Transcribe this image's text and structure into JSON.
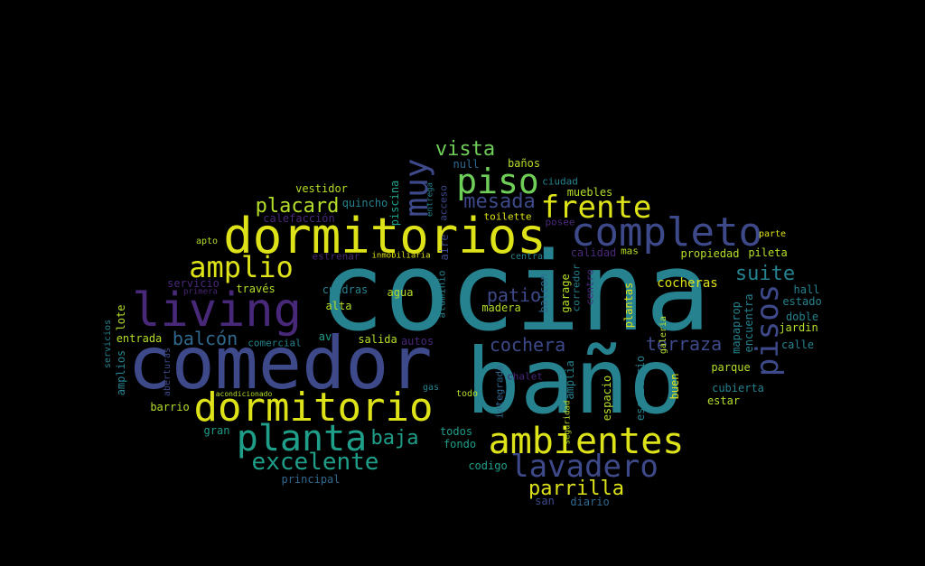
{
  "colors": {
    "background": "#000000",
    "yellow": "#dde318",
    "lime": "#b5de2b",
    "light-green": "#6ece58",
    "green": "#35b779",
    "teal": "#1f9e89",
    "dark-teal": "#26828e",
    "blue": "#31688e",
    "indigo": "#3e4989",
    "purple": "#482878",
    "dark-purple": "#440154"
  },
  "words": [
    "cocina",
    "baño",
    "comedor",
    "dormitorios",
    "completo",
    "living",
    "dormitorio",
    "ambientes",
    "planta",
    "piso",
    "frente",
    "lavadero",
    "amplio",
    "muy",
    "pisos",
    "excelente",
    "mesada",
    "placard",
    "vista",
    "suite",
    "baja",
    "parrilla",
    "cochera",
    "terraza",
    "balcón",
    "patio",
    "cocheras",
    "vestidor",
    "quincho",
    "calefacción",
    "apto",
    "estrenar",
    "servicio",
    "primera",
    "través",
    "cuadras",
    "agua",
    "alta",
    "av",
    "salida",
    "autos",
    "comercial",
    "entrada",
    "lote",
    "amplios",
    "servicios",
    "aberturas",
    "acondicionado",
    "barrio",
    "gran",
    "gas",
    "todo",
    "todos",
    "fondo",
    "codigo",
    "principal",
    "san",
    "diario",
    "null",
    "baños",
    "ciudad",
    "muebles",
    "toilette",
    "posee",
    "calidad",
    "mas",
    "piscina",
    "inmobiliaria",
    "aluminio",
    "aire",
    "acceso",
    "entrega",
    "madera",
    "integrada",
    "balcon",
    "garage",
    "corredor",
    "centro",
    "amplia",
    "seguridad",
    "chalet",
    "espacio",
    "escritorio",
    "plantas",
    "galeria",
    "buen",
    "mapaprop",
    "encuentra",
    "propiedad",
    "pileta",
    "parte",
    "hall",
    "estado",
    "doble",
    "jardin",
    "calle",
    "parque",
    "cubierta",
    "estar",
    "central"
  ]
}
